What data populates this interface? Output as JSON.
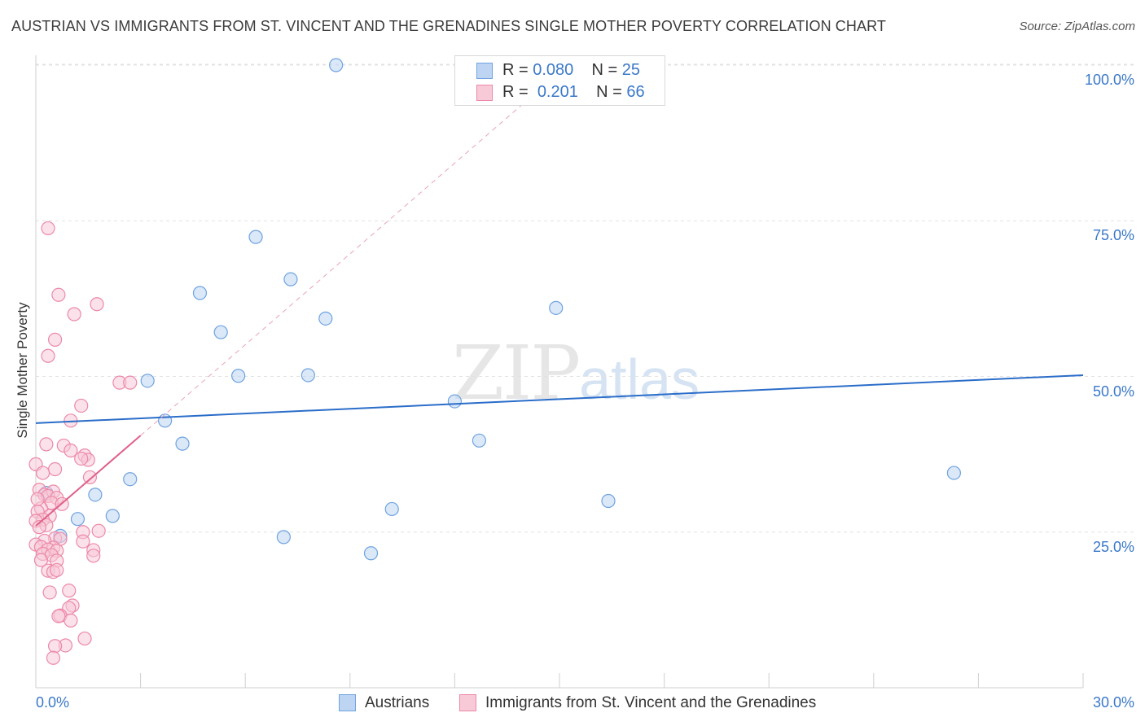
{
  "chart_data": {
    "type": "scatter",
    "title": "AUSTRIAN VS IMMIGRANTS FROM ST. VINCENT AND THE GRENADINES SINGLE MOTHER POVERTY CORRELATION CHART",
    "source": "Source: ZipAtlas.com",
    "ylabel": "Single Mother Poverty",
    "xlabel": "",
    "xlim": [
      0,
      30
    ],
    "ylim": [
      0,
      100
    ],
    "x_tick_labels": [
      "0.0%",
      "30.0%"
    ],
    "y_tick_labels": [
      "25.0%",
      "50.0%",
      "75.0%",
      "100.0%"
    ],
    "y_ticks": [
      25,
      50,
      75,
      100
    ],
    "watermark": {
      "zip": "ZIP",
      "atlas": "atlas"
    },
    "legend_top": [
      {
        "r_label": "R = ",
        "r_value": "0.080",
        "n_label": "N = ",
        "n_value": "25"
      },
      {
        "r_label": "R = ",
        "r_value": "0.201",
        "n_label": "N = ",
        "n_value": "66"
      }
    ],
    "series": [
      {
        "name": "Austrians",
        "color": "#6fa3e0",
        "fill": "#bdd5f3",
        "line_color": "#2a6dc9",
        "trend": {
          "x": [
            0,
            30
          ],
          "y": [
            42.5,
            50.2
          ]
        },
        "points": [
          [
            8.6,
            100.0
          ],
          [
            6.3,
            72.4
          ],
          [
            7.3,
            65.6
          ],
          [
            4.7,
            63.4
          ],
          [
            14.9,
            61.0
          ],
          [
            8.3,
            59.3
          ],
          [
            5.3,
            57.1
          ],
          [
            3.2,
            49.3
          ],
          [
            5.8,
            50.1
          ],
          [
            7.8,
            50.2
          ],
          [
            12.0,
            46.0
          ],
          [
            3.7,
            42.9
          ],
          [
            4.2,
            39.2
          ],
          [
            12.7,
            39.7
          ],
          [
            26.3,
            34.5
          ],
          [
            2.7,
            33.5
          ],
          [
            1.7,
            31.0
          ],
          [
            16.4,
            30.0
          ],
          [
            2.2,
            27.6
          ],
          [
            10.2,
            28.7
          ],
          [
            1.2,
            27.1
          ],
          [
            0.7,
            24.4
          ],
          [
            7.1,
            24.2
          ],
          [
            9.6,
            21.6
          ],
          [
            0.3,
            31.3
          ]
        ]
      },
      {
        "name": "Immigrants from St. Vincent and the Grenadines",
        "color": "#ec89a8",
        "fill": "#f8c9d7",
        "line_color": "#e0608a",
        "trend": {
          "x": [
            0,
            3.0
          ],
          "y": [
            26.0,
            40.5
          ]
        },
        "trend_dashed": {
          "x": [
            3.0,
            14.0
          ],
          "y": [
            40.5,
            94.0
          ]
        },
        "points": [
          [
            0.35,
            73.8
          ],
          [
            0.65,
            63.1
          ],
          [
            1.1,
            60.0
          ],
          [
            1.75,
            61.6
          ],
          [
            0.55,
            55.9
          ],
          [
            0.35,
            53.3
          ],
          [
            2.4,
            49.0
          ],
          [
            2.7,
            49.0
          ],
          [
            1.3,
            45.3
          ],
          [
            1.0,
            42.9
          ],
          [
            0.3,
            39.1
          ],
          [
            0.8,
            38.9
          ],
          [
            1.0,
            38.1
          ],
          [
            1.4,
            37.3
          ],
          [
            1.5,
            36.6
          ],
          [
            1.3,
            36.8
          ],
          [
            0.0,
            35.9
          ],
          [
            0.55,
            35.1
          ],
          [
            0.2,
            34.5
          ],
          [
            1.55,
            33.8
          ],
          [
            0.1,
            31.8
          ],
          [
            0.25,
            31.0
          ],
          [
            0.5,
            31.5
          ],
          [
            0.35,
            30.8
          ],
          [
            0.6,
            30.5
          ],
          [
            0.45,
            29.7
          ],
          [
            0.75,
            29.5
          ],
          [
            0.15,
            28.8
          ],
          [
            0.05,
            28.3
          ],
          [
            0.4,
            27.6
          ],
          [
            0.2,
            27.0
          ],
          [
            0.0,
            26.8
          ],
          [
            0.3,
            26.1
          ],
          [
            0.1,
            25.8
          ],
          [
            1.8,
            25.2
          ],
          [
            1.35,
            25.0
          ],
          [
            0.55,
            24.0
          ],
          [
            0.7,
            23.9
          ],
          [
            0.25,
            23.6
          ],
          [
            1.35,
            23.5
          ],
          [
            0.0,
            23.0
          ],
          [
            0.15,
            22.6
          ],
          [
            0.5,
            22.5
          ],
          [
            0.35,
            22.2
          ],
          [
            0.6,
            22.0
          ],
          [
            1.65,
            22.1
          ],
          [
            0.2,
            21.5
          ],
          [
            0.45,
            21.3
          ],
          [
            1.65,
            21.2
          ],
          [
            0.6,
            20.4
          ],
          [
            0.15,
            20.5
          ],
          [
            0.35,
            18.8
          ],
          [
            0.5,
            18.6
          ],
          [
            0.6,
            18.9
          ],
          [
            0.95,
            15.6
          ],
          [
            0.4,
            15.3
          ],
          [
            1.05,
            13.2
          ],
          [
            0.95,
            12.8
          ],
          [
            0.7,
            11.6
          ],
          [
            0.65,
            11.5
          ],
          [
            1.0,
            10.8
          ],
          [
            0.85,
            6.8
          ],
          [
            0.55,
            6.7
          ],
          [
            1.4,
            7.9
          ],
          [
            0.5,
            4.8
          ],
          [
            0.05,
            30.3
          ]
        ]
      }
    ]
  }
}
